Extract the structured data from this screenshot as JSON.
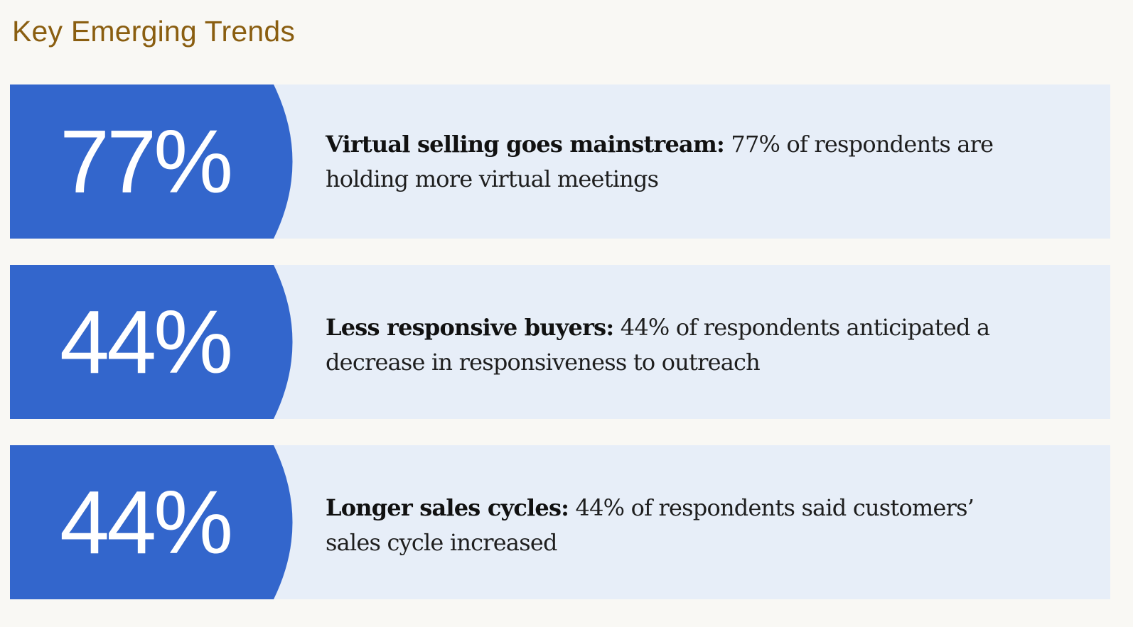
{
  "title": "Key Emerging Trends",
  "colors": {
    "title": "#8a5e10",
    "accent": "#3366cc",
    "card_background": "#e7eef8",
    "page_background": "#f9f8f4"
  },
  "trends": [
    {
      "stat": "77%",
      "lead": "Virtual selling goes mainstream:",
      "body": " 77% of respondents are holding more virtual meetings"
    },
    {
      "stat": "44%",
      "lead": "Less responsive buyers:",
      "body": " 44% of respondents anticipated a decrease in responsiveness to outreach"
    },
    {
      "stat": "44%",
      "lead": "Longer sales cycles:",
      "body": " 44% of respondents said customers’ sales cycle increased"
    }
  ]
}
